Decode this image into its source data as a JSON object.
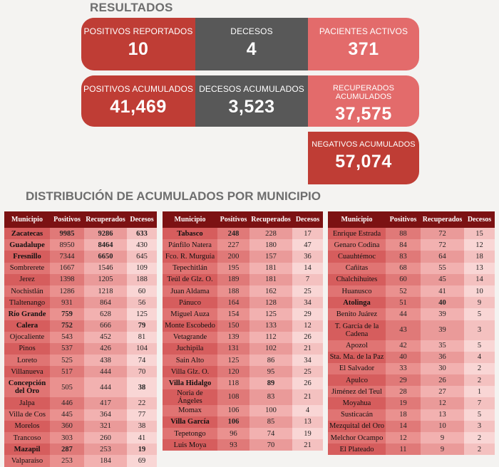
{
  "header": {
    "title": "RESULTADOS",
    "subtitle": "DISTRIBUCIÓN DE ACUMULADOS POR MUNICIPIO"
  },
  "cards": {
    "positivos_reportados": {
      "label": "POSITIVOS REPORTADOS",
      "value": "10"
    },
    "decesos": {
      "label": "DECESOS",
      "value": "4"
    },
    "pacientes_activos": {
      "label": "PACIENTES ACTIVOS",
      "value": "371"
    },
    "positivos_acumulados": {
      "label": "POSITIVOS ACUMULADOS",
      "value": "41,469"
    },
    "decesos_acumulados": {
      "label": "DECESOS ACUMULADOS",
      "value": "3,523"
    },
    "recuperados_acumulados": {
      "label": "RECUPERADOS ACUMULADOS",
      "value": "37,575"
    },
    "negativos_acumulados": {
      "label": "NEGATIVOS ACUMULADOS",
      "value": "57,074"
    }
  },
  "colors": {
    "dark_red": "#bf3d35",
    "gray": "#585858",
    "light_red": "#e36b6b",
    "table_header": "#7c1213"
  },
  "table_headers": [
    "Municipio",
    "Positivos",
    "Recuperados",
    "Decesos"
  ],
  "tables": [
    [
      [
        "Zacatecas",
        "9985",
        "9286",
        "633"
      ],
      [
        "Guadalupe",
        "8950",
        "8464",
        "430"
      ],
      [
        "Fresnillo",
        "7344",
        "6650",
        "645"
      ],
      [
        "Sombrerete",
        "1667",
        "1546",
        "109"
      ],
      [
        "Jerez",
        "1398",
        "1205",
        "188"
      ],
      [
        "Nochistlán",
        "1286",
        "1218",
        "60"
      ],
      [
        "Tlaltenango",
        "931",
        "864",
        "56"
      ],
      [
        "Río Grande",
        "759",
        "628",
        "125"
      ],
      [
        "Calera",
        "752",
        "666",
        "79"
      ],
      [
        "Ojocaliente",
        "543",
        "452",
        "81"
      ],
      [
        "Pinos",
        "537",
        "426",
        "104"
      ],
      [
        "Loreto",
        "525",
        "438",
        "74"
      ],
      [
        "Villanueva",
        "517",
        "444",
        "70"
      ],
      [
        "Concepción del Oro",
        "505",
        "444",
        "38"
      ],
      [
        "Jalpa",
        "446",
        "417",
        "22"
      ],
      [
        "Villa de Cos",
        "445",
        "364",
        "77"
      ],
      [
        "Morelos",
        "360",
        "321",
        "38"
      ],
      [
        "Trancoso",
        "303",
        "260",
        "41"
      ],
      [
        "Mazapil",
        "287",
        "253",
        "19"
      ],
      [
        "Valparaíso",
        "253",
        "184",
        "69"
      ]
    ],
    [
      [
        "Tabasco",
        "248",
        "228",
        "17"
      ],
      [
        "Pánfilo Natera",
        "227",
        "180",
        "47"
      ],
      [
        "Fco. R. Murguía",
        "200",
        "157",
        "36"
      ],
      [
        "Tepechitlán",
        "195",
        "181",
        "14"
      ],
      [
        "Teúl de Glz. O.",
        "189",
        "181",
        "7"
      ],
      [
        "Juan Aldama",
        "188",
        "162",
        "25"
      ],
      [
        "Pánuco",
        "164",
        "128",
        "34"
      ],
      [
        "Miguel Auza",
        "154",
        "125",
        "29"
      ],
      [
        "Monte Escobedo",
        "150",
        "133",
        "12"
      ],
      [
        "Vetagrande",
        "139",
        "112",
        "26"
      ],
      [
        "Juchipila",
        "131",
        "102",
        "21"
      ],
      [
        "Sain Alto",
        "125",
        "86",
        "34"
      ],
      [
        "Villa Glz. O.",
        "120",
        "95",
        "25"
      ],
      [
        "Villa Hidalgo",
        "118",
        "89",
        "26"
      ],
      [
        "Noria de Ángeles",
        "108",
        "83",
        "21"
      ],
      [
        "Momax",
        "106",
        "100",
        "4"
      ],
      [
        "Villa García",
        "106",
        "85",
        "13"
      ],
      [
        "Tepetongo",
        "96",
        "74",
        "19"
      ],
      [
        "Luis Moya",
        "93",
        "70",
        "21"
      ]
    ],
    [
      [
        "Enrique Estrada",
        "88",
        "72",
        "15"
      ],
      [
        "Genaro Codina",
        "84",
        "72",
        "12"
      ],
      [
        "Cuauhtémoc",
        "83",
        "64",
        "18"
      ],
      [
        "Cañitas",
        "68",
        "55",
        "13"
      ],
      [
        "Chalchihuites",
        "60",
        "45",
        "14"
      ],
      [
        "Huanusco",
        "52",
        "41",
        "10"
      ],
      [
        "Atolinga",
        "51",
        "40",
        "9"
      ],
      [
        "Benito Juárez",
        "44",
        "39",
        "5"
      ],
      [
        "T. García de la Cadena",
        "43",
        "39",
        "3"
      ],
      [
        "Apozol",
        "42",
        "35",
        "5"
      ],
      [
        "Sta. Ma. de la Paz",
        "40",
        "36",
        "4"
      ],
      [
        "El Salvador",
        "33",
        "30",
        "2"
      ],
      [
        "Apulco",
        "29",
        "26",
        "2"
      ],
      [
        "Jiménez del Teul",
        "28",
        "27",
        "1"
      ],
      [
        "Moyahua",
        "19",
        "12",
        "7"
      ],
      [
        "Susticacán",
        "18",
        "13",
        "5"
      ],
      [
        "Mezquital del Oro",
        "14",
        "10",
        "3"
      ],
      [
        "Melchor Ocampo",
        "12",
        "9",
        "2"
      ],
      [
        "El Plateado",
        "11",
        "9",
        "2"
      ]
    ]
  ]
}
